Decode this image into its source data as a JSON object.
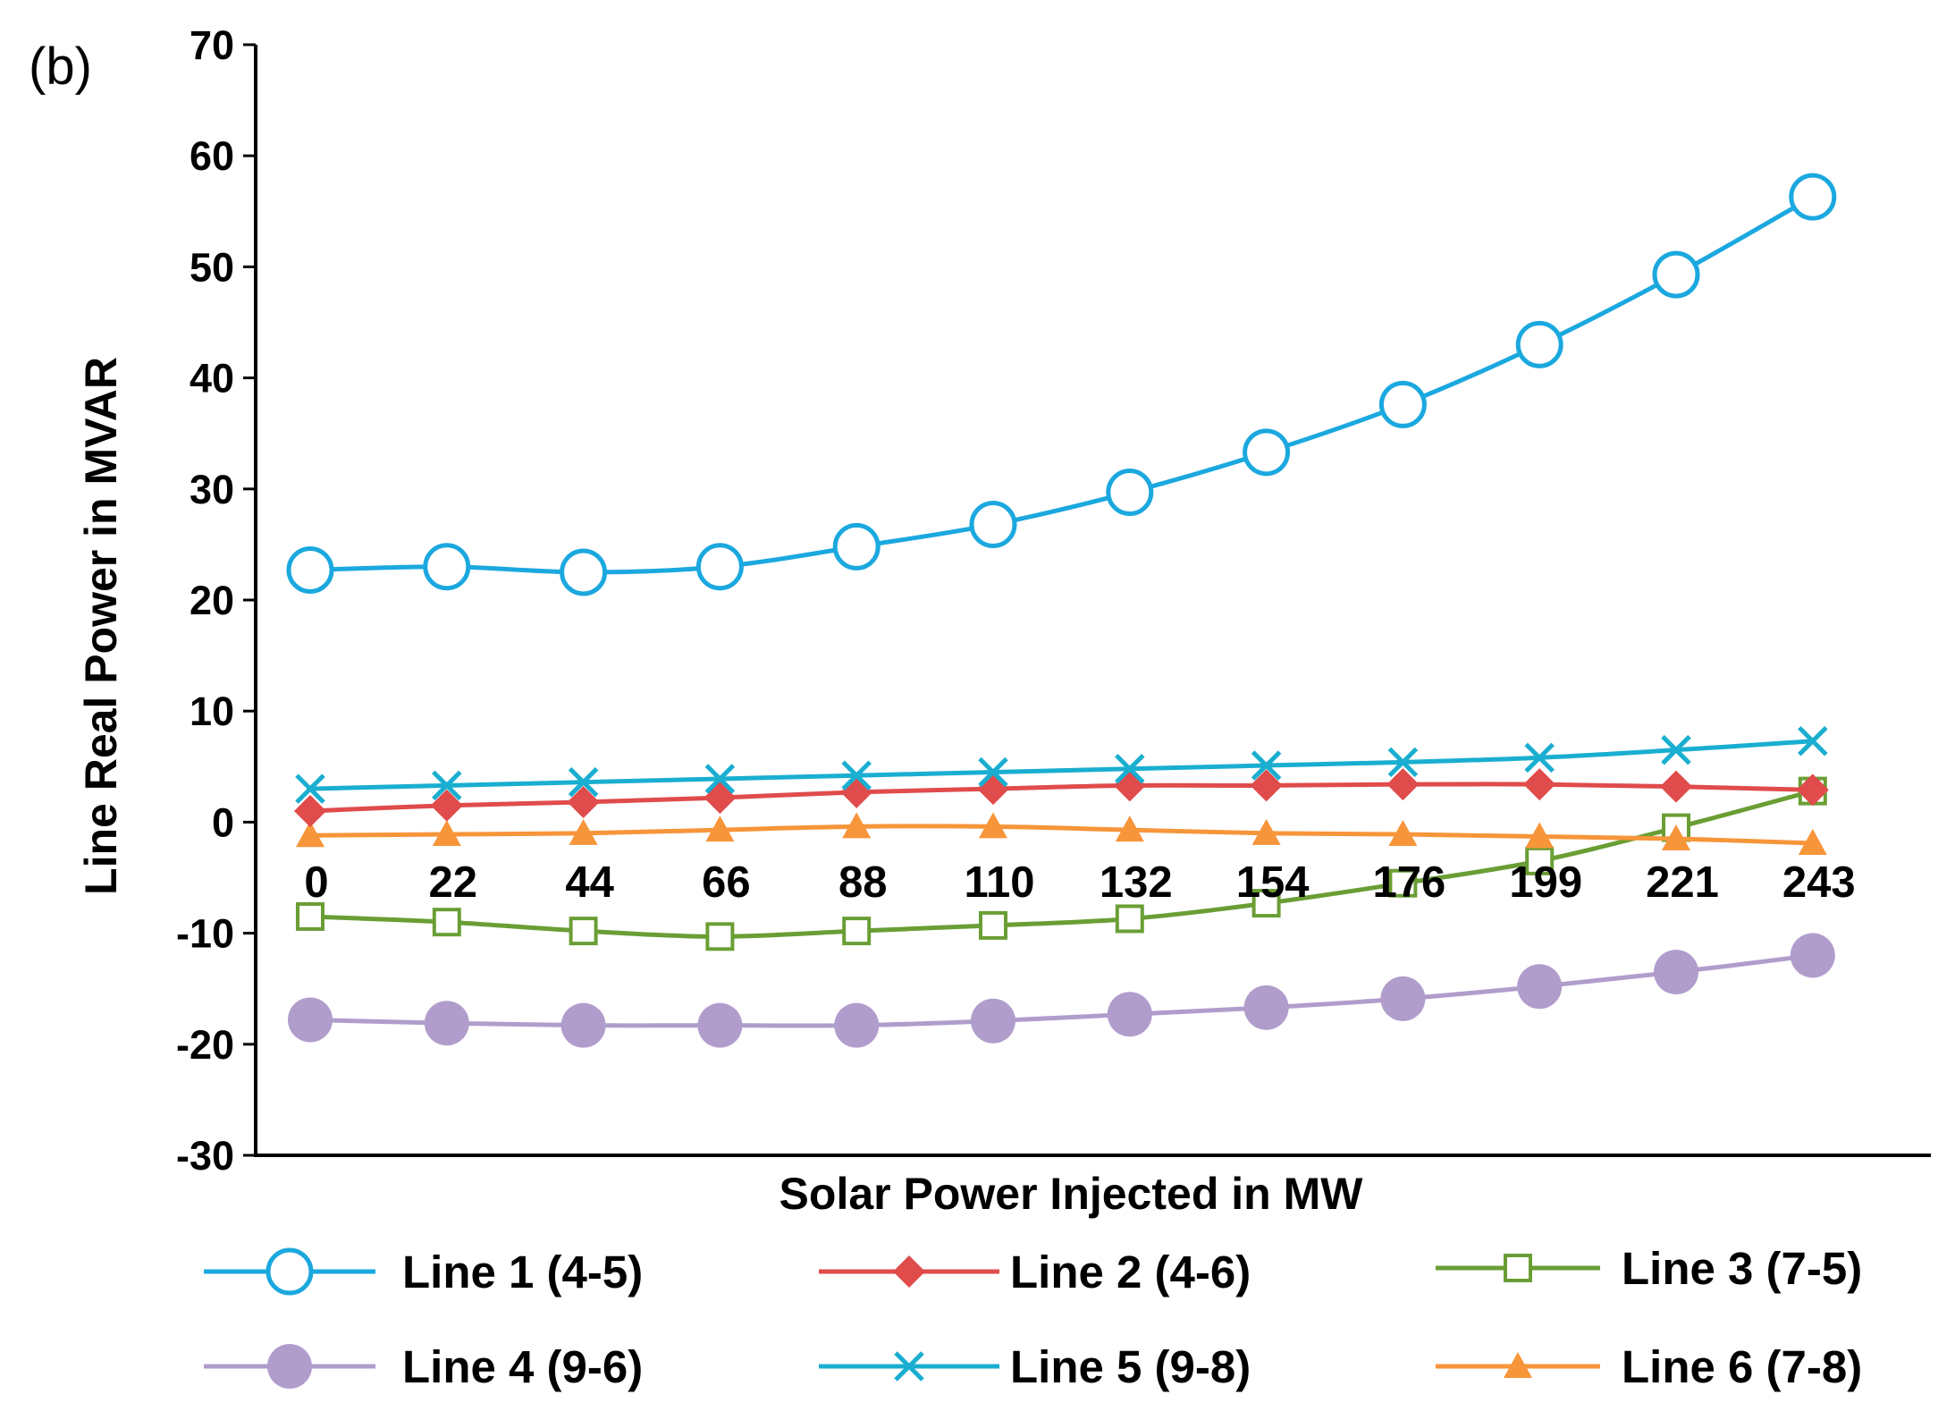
{
  "chart_data": {
    "type": "line",
    "panel_label": "(b)",
    "xlabel": "Solar Power Injected in MW",
    "ylabel": "Line Real Power in MVAR",
    "ylim": [
      -30,
      70
    ],
    "yticks": [
      "70",
      "60",
      "50",
      "40",
      "30",
      "20",
      "10",
      "0",
      "-10",
      "-20",
      "-30"
    ],
    "ytick_values": [
      70,
      60,
      50,
      40,
      30,
      20,
      10,
      0,
      -10,
      -20,
      -30
    ],
    "categories": [
      "0",
      "22",
      "44",
      "66",
      "88",
      "110",
      "132",
      "154",
      "176",
      "199",
      "221",
      "243"
    ],
    "legend_position": "bottom",
    "series": [
      {
        "name": "Line 1 (4-5)",
        "color": "#1BA8DF",
        "marker": "open-circle",
        "values": [
          22.7,
          23.0,
          22.5,
          23.0,
          24.8,
          26.8,
          29.7,
          33.3,
          37.6,
          43.0,
          49.3,
          56.3
        ]
      },
      {
        "name": "Line 2 (4-6)",
        "color": "#E04B4B",
        "marker": "filled-diamond",
        "values": [
          1.0,
          1.5,
          1.8,
          2.2,
          2.7,
          3.0,
          3.3,
          3.3,
          3.4,
          3.4,
          3.2,
          2.9
        ]
      },
      {
        "name": "Line 3 (7-5)",
        "color": "#6A9E35",
        "marker": "open-square",
        "values": [
          -8.5,
          -9.0,
          -9.8,
          -10.3,
          -9.8,
          -9.3,
          -8.7,
          -7.3,
          -5.5,
          -3.5,
          -0.5,
          2.8
        ]
      },
      {
        "name": "Line 4 (9-6)",
        "color": "#B09DCC",
        "marker": "filled-circle",
        "values": [
          -17.8,
          -18.1,
          -18.3,
          -18.3,
          -18.3,
          -17.9,
          -17.3,
          -16.7,
          -15.9,
          -14.8,
          -13.5,
          -12.0
        ]
      },
      {
        "name": "Line 5 (9-8)",
        "color": "#1AAED0",
        "marker": "x-mark",
        "values": [
          3.0,
          3.3,
          3.6,
          3.9,
          4.2,
          4.5,
          4.8,
          5.1,
          5.4,
          5.8,
          6.5,
          7.3
        ]
      },
      {
        "name": "Line 6 (7-8)",
        "color": "#F7953A",
        "marker": "filled-triangle",
        "values": [
          -1.2,
          -1.1,
          -1.0,
          -0.7,
          -0.4,
          -0.4,
          -0.7,
          -1.0,
          -1.1,
          -1.3,
          -1.5,
          -1.9
        ]
      }
    ]
  }
}
